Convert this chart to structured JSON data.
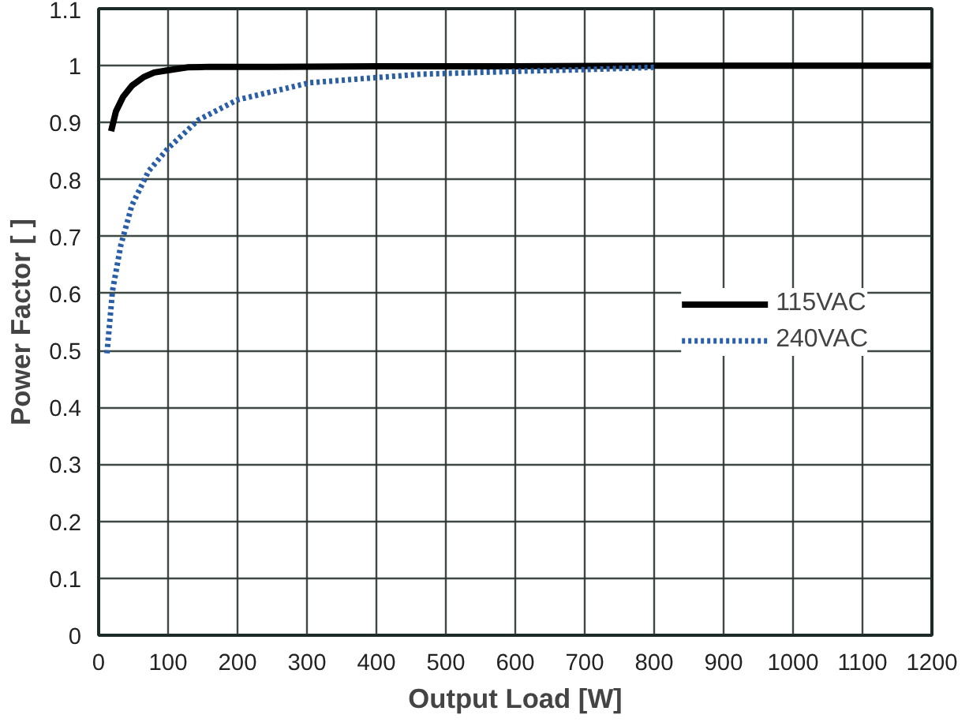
{
  "chart_data": {
    "type": "line",
    "xlabel": "Output Load [W]",
    "ylabel": "Power Factor [ ]",
    "xlim": [
      0,
      1200
    ],
    "xticks": [
      0,
      100,
      200,
      300,
      400,
      500,
      600,
      700,
      800,
      900,
      1000,
      1100,
      1200
    ],
    "ylim": [
      0,
      1.1
    ],
    "yticks": [
      0,
      0.1,
      0.2,
      0.3,
      0.4,
      0.5,
      0.6,
      0.7,
      0.8,
      0.9,
      1,
      1.1
    ],
    "grid": true,
    "legend": "right",
    "series": [
      {
        "name": "115VAC",
        "color": "#000000",
        "line_style": "solid",
        "x": [
          18,
          25,
          35,
          48,
          65,
          80,
          100,
          128,
          160,
          250,
          400,
          600,
          800,
          1000,
          1200
        ],
        "values": [
          0.885,
          0.92,
          0.945,
          0.965,
          0.98,
          0.988,
          0.992,
          0.997,
          0.998,
          0.998,
          0.999,
          0.999,
          1.0,
          1.0,
          1.0
        ]
      },
      {
        "name": "240VAC",
        "color": "#2a5fa8",
        "line_style": "dotted",
        "x": [
          12,
          20,
          32,
          48,
          72,
          100,
          144,
          200,
          304,
          464,
          600,
          700,
          800
        ],
        "values": [
          0.495,
          0.605,
          0.685,
          0.755,
          0.815,
          0.855,
          0.905,
          0.94,
          0.97,
          0.985,
          0.99,
          0.993,
          0.997
        ]
      }
    ]
  }
}
